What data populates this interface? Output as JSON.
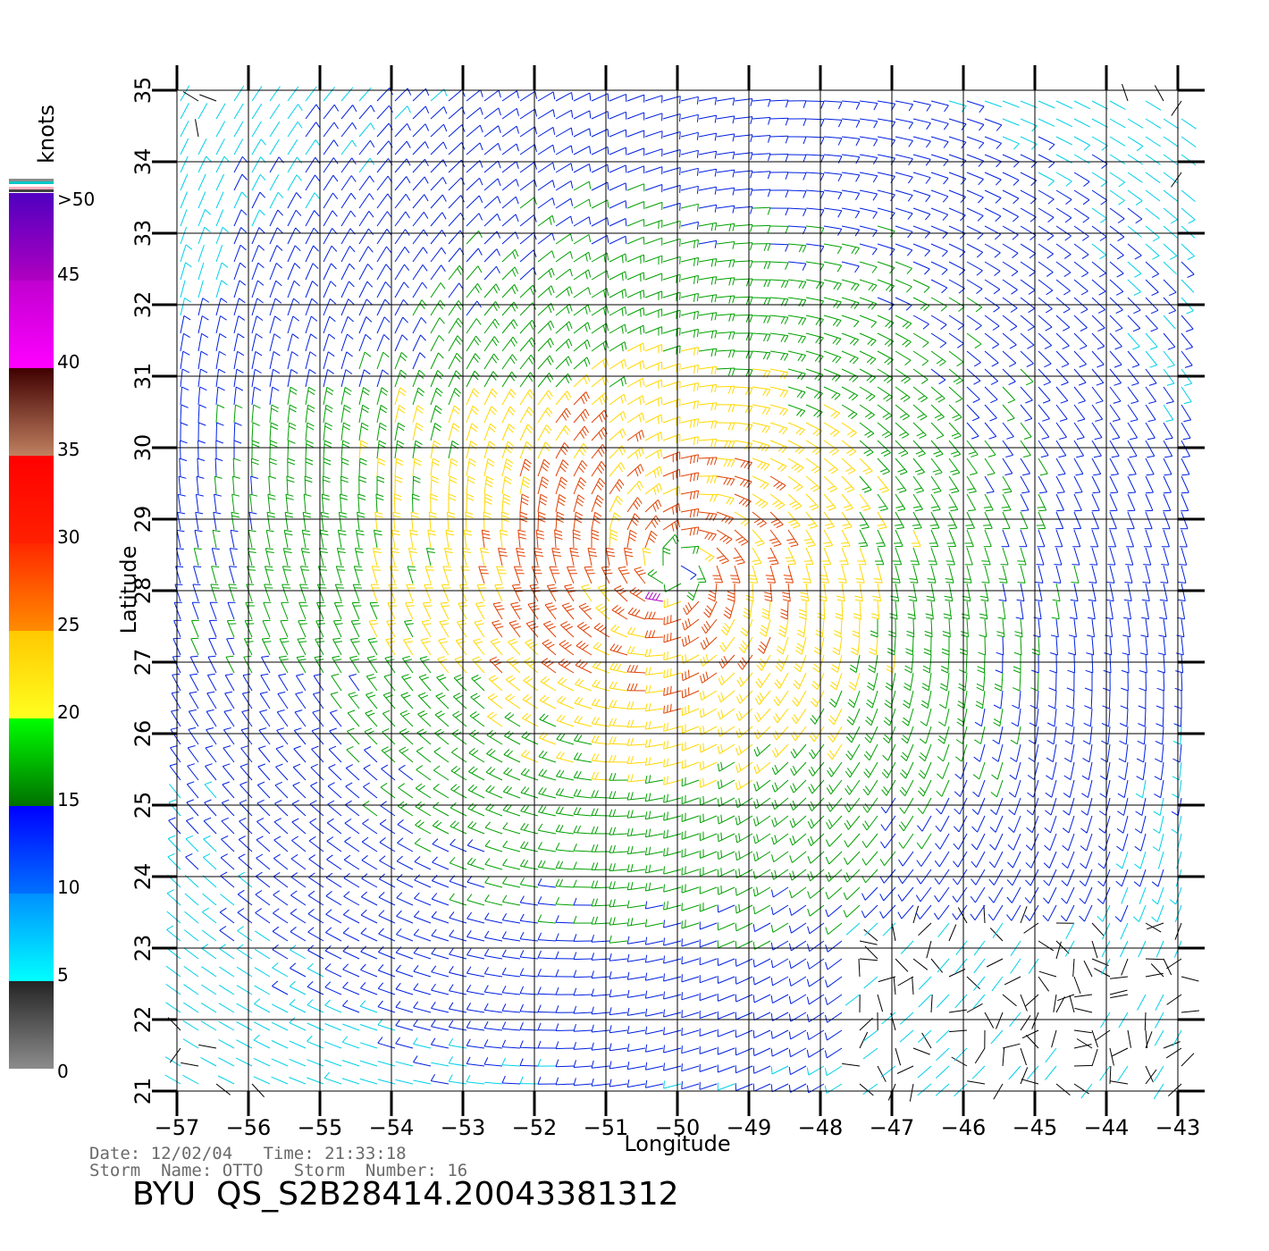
{
  "chart_data": {
    "type": "wind_barbs",
    "xlabel": "Longitude",
    "ylabel": "Latitude",
    "xlim": [
      -57,
      -43
    ],
    "ylim": [
      21,
      35
    ],
    "x_ticks": [
      "−57",
      "−56",
      "−55",
      "−54",
      "−53",
      "−52",
      "−51",
      "−50",
      "−49",
      "−48",
      "−47",
      "−46",
      "−45",
      "−44",
      "−43"
    ],
    "y_ticks": [
      "21",
      "22",
      "23",
      "24",
      "25",
      "26",
      "27",
      "28",
      "29",
      "30",
      "31",
      "32",
      "33",
      "34",
      "35"
    ],
    "grid": true,
    "cyclone_center": {
      "lon": -50.0,
      "lat": 28.3
    },
    "colorbar": {
      "unit": "knots",
      "labels": [
        "0",
        "5",
        "10",
        "15",
        "20",
        "25",
        "30",
        "35",
        "40",
        "45",
        ">50"
      ],
      "bands": [
        {
          "min": 0,
          "max": 5,
          "colors": [
            "#8c8c8c",
            "#242424"
          ]
        },
        {
          "min": 5,
          "max": 10,
          "colors": [
            "#00ffff",
            "#0090ff"
          ]
        },
        {
          "min": 10,
          "max": 15,
          "colors": [
            "#0070ff",
            "#0000ff"
          ]
        },
        {
          "min": 15,
          "max": 20,
          "colors": [
            "#007000",
            "#00ff00"
          ]
        },
        {
          "min": 20,
          "max": 25,
          "colors": [
            "#ffff20",
            "#ffc800"
          ]
        },
        {
          "min": 25,
          "max": 30,
          "colors": [
            "#ff8c00",
            "#ff2800"
          ]
        },
        {
          "min": 30,
          "max": 35,
          "colors": [
            "#ff2000",
            "#ff0000"
          ]
        },
        {
          "min": 35,
          "max": 40,
          "colors": [
            "#c08060",
            "#400000"
          ]
        },
        {
          "min": 40,
          "max": 45,
          "colors": [
            "#ff00ff",
            "#c000d0"
          ]
        },
        {
          "min": 45,
          "max": 50,
          "colors": [
            "#b000c0",
            "#5000c0"
          ]
        }
      ]
    },
    "speed_colors": {
      "calm": "#000000",
      "light": "#00d0e8",
      "moderate": "#0020e0",
      "fresh": "#00a000",
      "strong": "#ffd800",
      "gale": "#e04000",
      "storm": "#b000c0"
    }
  },
  "footer": {
    "date_line": "Date: 12/02/04   Time: 21:33:18",
    "storm_line": "Storm  Name: OTTO   Storm  Number: 16",
    "file_id": "BYU  QS_S2B28414.20043381312"
  }
}
